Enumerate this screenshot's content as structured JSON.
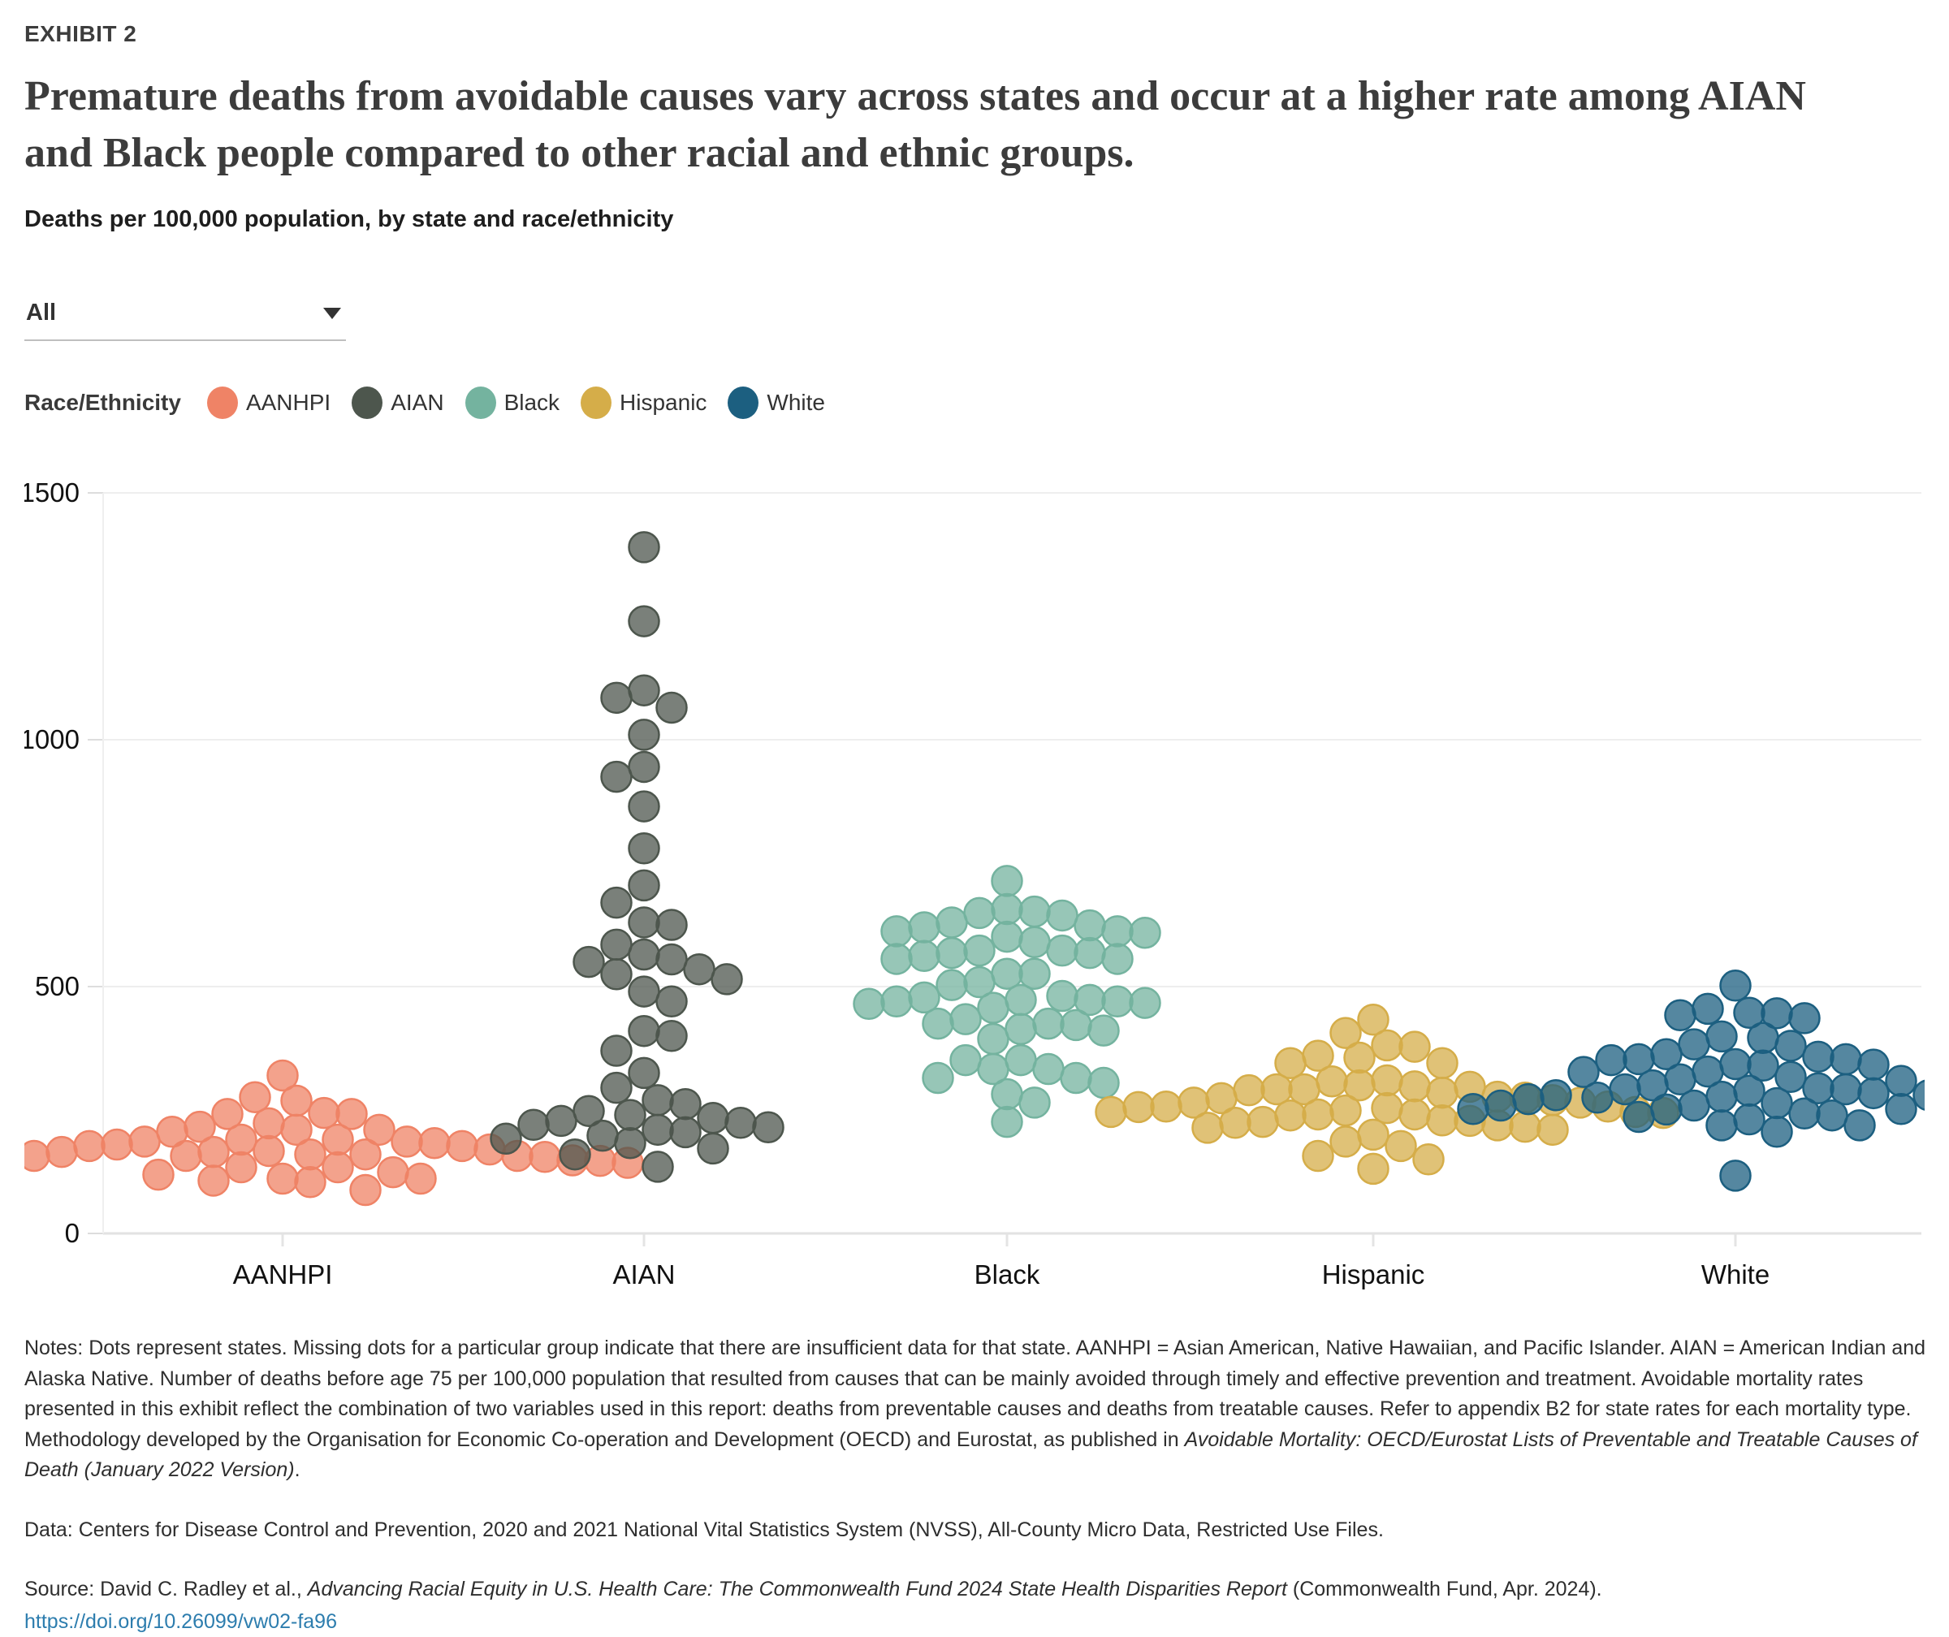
{
  "exhibit_label": "EXHIBIT 2",
  "title": "Premature deaths from avoidable causes vary across states and occur at a higher rate among AIAN and Black people compared to other racial and ethnic groups.",
  "subtitle": "Deaths per 100,000 population, by state and race/ethnicity",
  "filter": {
    "value": "All"
  },
  "legend": {
    "label": "Race/Ethnicity",
    "items": [
      {
        "label": "AANHPI",
        "color": "#ef8366"
      },
      {
        "label": "AIAN",
        "color": "#4d564d"
      },
      {
        "label": "Black",
        "color": "#74b39f"
      },
      {
        "label": "Hispanic",
        "color": "#d5ad49"
      },
      {
        "label": "White",
        "color": "#1c5f80"
      }
    ]
  },
  "chart_data": {
    "type": "scatter",
    "layout": "beeswarm",
    "title": "Deaths per 100,000 population, by state and race/ethnicity",
    "xlabel": "",
    "ylabel": "Deaths per 100,000 population",
    "ylim": [
      0,
      1500
    ],
    "yticks": [
      0,
      500,
      1000,
      1500
    ],
    "grid": true,
    "legend_position": "top",
    "categories": [
      "AANHPI",
      "AIAN",
      "Black",
      "Hispanic",
      "White"
    ],
    "series": [
      {
        "name": "AANHPI",
        "color": "#ef8366",
        "values": [
          320,
          276,
          269,
          244,
          242,
          242,
          223,
          216,
          210,
          210,
          206,
          190,
          190,
          186,
          186,
          183,
          180,
          177,
          177,
          170,
          167,
          165,
          165,
          160,
          160,
          157,
          157,
          157,
          155,
          150,
          148,
          148,
          147,
          143,
          143,
          134,
          134,
          124,
          119,
          111,
          111,
          107,
          104,
          88
        ]
      },
      {
        "name": "AIAN",
        "color": "#4d564d",
        "values": [
          1390,
          1240,
          1100,
          1085,
          1065,
          1010,
          945,
          925,
          865,
          780,
          705,
          670,
          630,
          625,
          585,
          565,
          555,
          550,
          535,
          525,
          515,
          490,
          470,
          410,
          400,
          370,
          325,
          295,
          270,
          262,
          248,
          240,
          234,
          228,
          224,
          220,
          215,
          210,
          205,
          198,
          192,
          183,
          172,
          160,
          135
        ]
      },
      {
        "name": "Black",
        "color": "#74b39f",
        "values": [
          714,
          657,
          652,
          649,
          644,
          630,
          624,
          620,
          612,
          612,
          609,
          601,
          590,
          573,
          573,
          568,
          568,
          562,
          556,
          556,
          526,
          526,
          509,
          503,
          481,
          478,
          473,
          473,
          470,
          470,
          467,
          465,
          457,
          434,
          425,
          425,
          422,
          414,
          411,
          394,
          351,
          351,
          333,
          333,
          315,
          315,
          305,
          282,
          265,
          226
        ]
      },
      {
        "name": "Hispanic",
        "color": "#d5ad49",
        "values": [
          433,
          406,
          381,
          378,
          360,
          356,
          345,
          345,
          310,
          308,
          300,
          298,
          297,
          292,
          292,
          290,
          285,
          277,
          275,
          274,
          270,
          265,
          265,
          257,
          257,
          256,
          254,
          249,
          246,
          246,
          244,
          241,
          241,
          239,
          229,
          228,
          226,
          224,
          219,
          216,
          214,
          210,
          200,
          186,
          177,
          157,
          150,
          131
        ]
      },
      {
        "name": "White",
        "color": "#1c5f80",
        "values": [
          502,
          455,
          447,
          446,
          442,
          436,
          399,
          396,
          383,
          380,
          363,
          358,
          353,
          353,
          351,
          343,
          342,
          340,
          328,
          327,
          317,
          312,
          309,
          300,
          294,
          292,
          292,
          289,
          284,
          280,
          280,
          277,
          275,
          272,
          269,
          264,
          259,
          259,
          256,
          252,
          252,
          251,
          248,
          243,
          239,
          236,
          231,
          219,
          219,
          206,
          117
        ]
      }
    ]
  },
  "notes": {
    "before_italic": "Notes: Dots represent states. Missing dots for a particular group indicate that there are insufficient data for that state. AANHPI = Asian American, Native Hawaiian, and Pacific Islander. AIAN = American Indian and Alaska Native. Number of deaths before age 75 per 100,000 population that resulted from causes that can be mainly avoided through timely and effective prevention and treatment. Avoidable mortality rates presented in this exhibit reflect the combination of two variables used in this report: deaths from preventable causes and deaths from treatable causes. Refer to appendix B2 for state rates for each mortality type. Methodology developed by the Organisation for Economic Co-operation and Development (OECD) and Eurostat, as published in ",
    "italic": "Avoidable Mortality: OECD/Eurostat Lists of Preventable and Treatable Causes of Death (January 2022 Version)",
    "after_italic": "."
  },
  "data_line": "Data: Centers for Disease Control and Prevention, 2020 and 2021 National Vital Statistics System (NVSS), All-County Micro Data, Restricted Use Files.",
  "source": {
    "prefix": "Source: David C. Radley et al., ",
    "italic": "Advancing Racial Equity in U.S. Health Care: The Commonwealth Fund 2024 State Health Disparities Report",
    "suffix": " (Commonwealth Fund, Apr. 2024).",
    "link": "https://doi.org/10.26099/vw02-fa96"
  }
}
